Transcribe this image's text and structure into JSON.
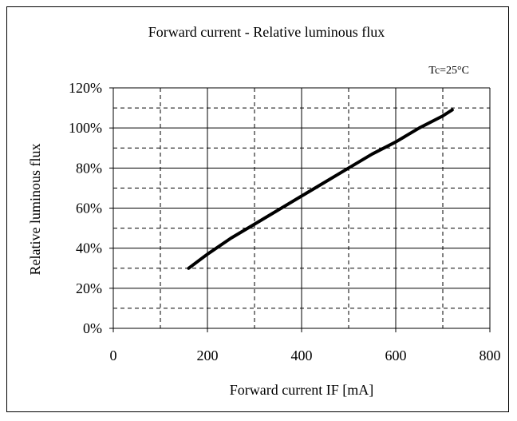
{
  "chart_data": {
    "type": "line",
    "title": "Forward current  -  Relative luminous flux",
    "condition_note": "Tc=25°C",
    "xlabel": "Forward current IF [mA]",
    "ylabel": "Relative luminous flux",
    "xlim": [
      0,
      800
    ],
    "ylim": [
      0,
      120
    ],
    "x_ticks": [
      0,
      200,
      400,
      600,
      800
    ],
    "x_tick_labels": [
      "0",
      "200",
      "400",
      "600",
      "800"
    ],
    "y_ticks": [
      0,
      20,
      40,
      60,
      80,
      100,
      120
    ],
    "y_tick_labels": [
      "0%",
      "20%",
      "40%",
      "60%",
      "80%",
      "100%",
      "120%"
    ],
    "grid": true,
    "grid_minor_x": [
      100,
      300,
      500,
      700
    ],
    "grid_minor_y": [
      10,
      30,
      50,
      70,
      90,
      110
    ],
    "line_color": "#000000",
    "series": [
      {
        "x": [
          160,
          200,
          250,
          300,
          350,
          400,
          450,
          500,
          550,
          600,
          650,
          700,
          720
        ],
        "y": [
          30,
          37,
          45,
          52,
          59,
          66,
          73,
          80,
          87,
          93,
          100,
          106,
          109
        ]
      }
    ]
  }
}
